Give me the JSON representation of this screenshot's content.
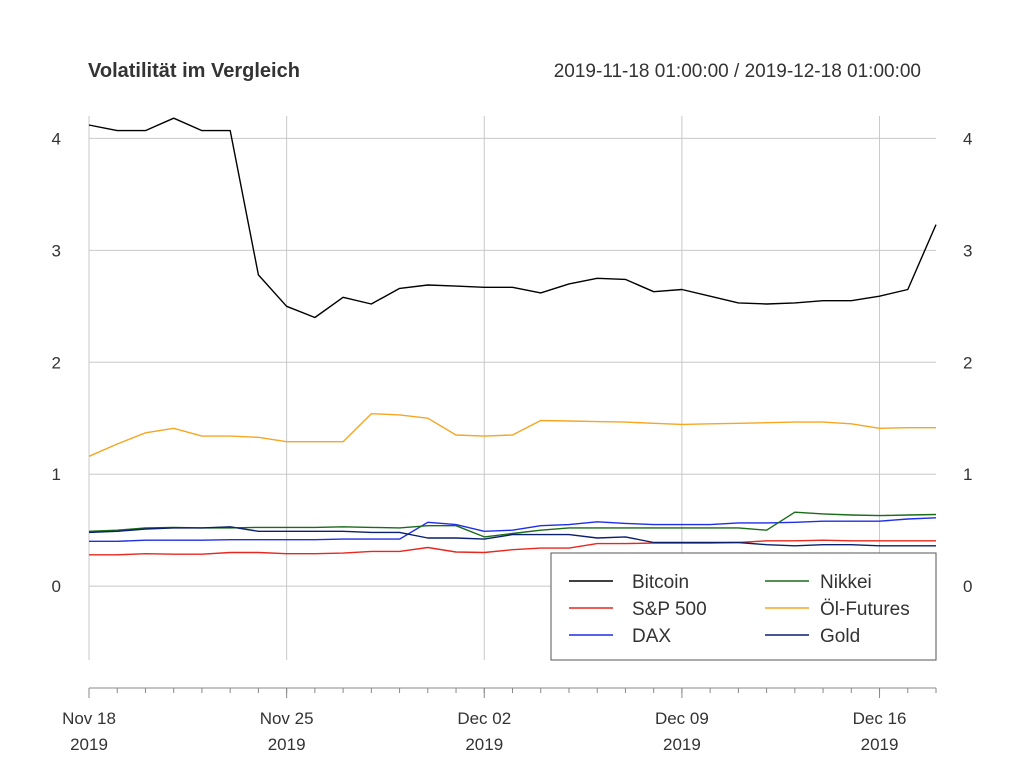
{
  "chart_data": {
    "type": "line",
    "title": "Volatilität im Vergleich",
    "date_range_label": "2019-11-18 01:00:00 / 2019-12-18 01:00:00",
    "x": [
      "2019-11-18",
      "2019-11-19",
      "2019-11-20",
      "2019-11-21",
      "2019-11-22",
      "2019-11-23",
      "2019-11-24",
      "2019-11-25",
      "2019-11-26",
      "2019-11-27",
      "2019-11-28",
      "2019-11-29",
      "2019-11-30",
      "2019-12-01",
      "2019-12-02",
      "2019-12-03",
      "2019-12-04",
      "2019-12-05",
      "2019-12-06",
      "2019-12-07",
      "2019-12-08",
      "2019-12-09",
      "2019-12-10",
      "2019-12-11",
      "2019-12-12",
      "2019-12-13",
      "2019-12-14",
      "2019-12-15",
      "2019-12-16",
      "2019-12-17",
      "2019-12-18"
    ],
    "ylim": [
      -0.66,
      4.2
    ],
    "y_ticks": [
      0,
      1,
      2,
      3,
      4
    ],
    "x_tick_labels": [
      {
        "date": "2019-11-18",
        "line1": "Nov 18",
        "line2": "2019"
      },
      {
        "date": "2019-11-25",
        "line1": "Nov 25",
        "line2": "2019"
      },
      {
        "date": "2019-12-02",
        "line1": "Dec 02",
        "line2": "2019"
      },
      {
        "date": "2019-12-09",
        "line1": "Dec 09",
        "line2": "2019"
      },
      {
        "date": "2019-12-16",
        "line1": "Dec 16",
        "line2": "2019"
      }
    ],
    "grid": true,
    "legend_position": "bottom-right",
    "series": [
      {
        "name": "Bitcoin",
        "color": "#000000",
        "values": [
          4.12,
          4.07,
          4.07,
          4.18,
          4.07,
          4.07,
          2.78,
          2.5,
          2.4,
          2.58,
          2.52,
          2.66,
          2.69,
          2.68,
          2.67,
          2.67,
          2.62,
          2.7,
          2.75,
          2.74,
          2.63,
          2.65,
          2.59,
          2.53,
          2.52,
          2.53,
          2.55,
          2.55,
          2.59,
          2.65,
          3.23
        ]
      },
      {
        "name": "S&P 500",
        "color": "#e8271f",
        "values": [
          0.28,
          0.28,
          0.29,
          0.285,
          0.285,
          0.3,
          0.3,
          0.29,
          0.29,
          0.295,
          0.31,
          0.31,
          0.345,
          0.305,
          0.3,
          0.325,
          0.34,
          0.34,
          0.38,
          0.38,
          0.385,
          0.385,
          0.385,
          0.39,
          0.405,
          0.405,
          0.41,
          0.405,
          0.405,
          0.405,
          0.405
        ]
      },
      {
        "name": "DAX",
        "color": "#1f2ee8",
        "values": [
          0.4,
          0.4,
          0.41,
          0.41,
          0.41,
          0.415,
          0.415,
          0.415,
          0.415,
          0.42,
          0.42,
          0.42,
          0.57,
          0.55,
          0.49,
          0.5,
          0.54,
          0.55,
          0.575,
          0.56,
          0.55,
          0.55,
          0.55,
          0.565,
          0.565,
          0.57,
          0.58,
          0.58,
          0.58,
          0.6,
          0.61
        ]
      },
      {
        "name": "Nikkei",
        "color": "#1a6b1a",
        "values": [
          0.49,
          0.5,
          0.52,
          0.525,
          0.52,
          0.52,
          0.525,
          0.525,
          0.525,
          0.53,
          0.525,
          0.52,
          0.54,
          0.54,
          0.44,
          0.47,
          0.5,
          0.52,
          0.52,
          0.52,
          0.52,
          0.52,
          0.52,
          0.52,
          0.5,
          0.66,
          0.645,
          0.635,
          0.63,
          0.635,
          0.64
        ]
      },
      {
        "name": "Öl-Futures",
        "color": "#f5a623",
        "values": [
          1.16,
          1.27,
          1.37,
          1.41,
          1.34,
          1.34,
          1.33,
          1.29,
          1.29,
          1.29,
          1.54,
          1.53,
          1.5,
          1.35,
          1.34,
          1.35,
          1.48,
          1.475,
          1.47,
          1.465,
          1.455,
          1.445,
          1.45,
          1.455,
          1.46,
          1.465,
          1.465,
          1.45,
          1.41,
          1.415,
          1.415
        ]
      },
      {
        "name": "Gold",
        "color": "#0a1f6e",
        "values": [
          0.48,
          0.49,
          0.51,
          0.52,
          0.52,
          0.53,
          0.49,
          0.49,
          0.49,
          0.49,
          0.48,
          0.48,
          0.43,
          0.43,
          0.42,
          0.46,
          0.46,
          0.46,
          0.43,
          0.44,
          0.39,
          0.39,
          0.39,
          0.39,
          0.37,
          0.36,
          0.37,
          0.37,
          0.36,
          0.36,
          0.36
        ]
      }
    ]
  }
}
